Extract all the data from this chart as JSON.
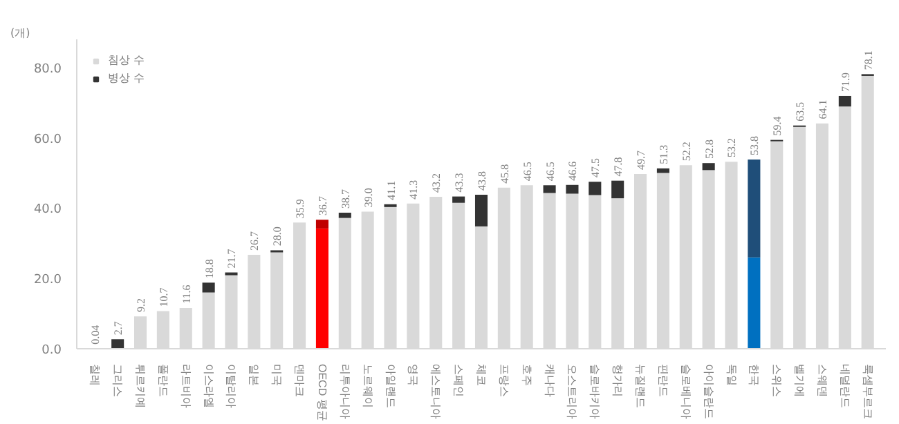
{
  "chart_data": {
    "type": "bar",
    "stacked": true,
    "ylabel": "(개)",
    "categories": [
      "칠레",
      "그리스",
      "튀르키예",
      "폴란드",
      "라트비아",
      "이스라엘",
      "이탈리아",
      "일본",
      "미국",
      "덴마크",
      "OECD 평균",
      "리투아니아",
      "노르웨이",
      "아일랜드",
      "영국",
      "에스토니아",
      "스페인",
      "체코",
      "프랑스",
      "호주",
      "캐나다",
      "오스트리아",
      "슬로바키아",
      "헝가리",
      "뉴질랜드",
      "핀란드",
      "슬로베니아",
      "아이슬란드",
      "독일",
      "한국",
      "스위스",
      "벨기에",
      "스웨덴",
      "네덜란드",
      "룩셈부르크"
    ],
    "series": [
      {
        "name": "침상 수",
        "color": "#d9d9d9",
        "colors": [
          "#d9d9d9",
          "#d9d9d9",
          "#d9d9d9",
          "#d9d9d9",
          "#d9d9d9",
          "#d9d9d9",
          "#d9d9d9",
          "#d9d9d9",
          "#d9d9d9",
          "#d9d9d9",
          "#ff0000",
          "#d9d9d9",
          "#d9d9d9",
          "#d9d9d9",
          "#d9d9d9",
          "#d9d9d9",
          "#d9d9d9",
          "#d9d9d9",
          "#d9d9d9",
          "#d9d9d9",
          "#d9d9d9",
          "#d9d9d9",
          "#d9d9d9",
          "#d9d9d9",
          "#d9d9d9",
          "#d9d9d9",
          "#d9d9d9",
          "#d9d9d9",
          "#d9d9d9",
          "#0070c0",
          "#d9d9d9",
          "#d9d9d9",
          "#d9d9d9",
          "#d9d9d9",
          "#d9d9d9"
        ],
        "values": [
          0.04,
          0,
          9.2,
          10.7,
          11.6,
          16.0,
          20.9,
          26.7,
          27.4,
          35.9,
          34.2,
          37.2,
          39.0,
          40.3,
          41.3,
          43.2,
          41.5,
          34.8,
          45.8,
          46.5,
          44.3,
          44.1,
          43.7,
          42.8,
          49.7,
          50.0,
          52.2,
          50.8,
          53.2,
          26.0,
          59.0,
          63.1,
          64.1,
          68.9,
          77.6
        ]
      },
      {
        "name": "병상 수",
        "color": "#333333",
        "colors": [
          "#333333",
          "#333333",
          "#333333",
          "#333333",
          "#333333",
          "#333333",
          "#333333",
          "#333333",
          "#333333",
          "#333333",
          "#c00000",
          "#333333",
          "#333333",
          "#333333",
          "#333333",
          "#333333",
          "#333333",
          "#333333",
          "#333333",
          "#333333",
          "#333333",
          "#333333",
          "#333333",
          "#333333",
          "#333333",
          "#333333",
          "#333333",
          "#333333",
          "#333333",
          "#1f4e79",
          "#333333",
          "#333333",
          "#333333",
          "#333333",
          "#333333"
        ],
        "values": [
          0,
          2.7,
          0,
          0,
          0,
          2.8,
          0.8,
          0,
          0.6,
          0,
          2.5,
          1.5,
          0,
          0.8,
          0,
          0,
          1.8,
          9.0,
          0,
          0,
          2.2,
          2.5,
          3.8,
          5.0,
          0,
          1.3,
          0,
          2.0,
          0,
          27.8,
          0.4,
          0.4,
          0,
          3.0,
          0.5
        ]
      }
    ],
    "totals": [
      "0.04",
      "2.7",
      "9.2",
      "10.7",
      "11.6",
      "18.8",
      "21.7",
      "26.7",
      "28.0",
      "35.9",
      "36.7",
      "38.7",
      "39.0",
      "41.1",
      "41.3",
      "43.2",
      "43.3",
      "43.8",
      "45.8",
      "46.5",
      "46.5",
      "46.6",
      "47.5",
      "47.8",
      "49.7",
      "51.3",
      "52.2",
      "52.8",
      "53.2",
      "53.8",
      "59.4",
      "63.5",
      "64.1",
      "71.9",
      "78.1"
    ],
    "ylim": [
      0,
      88
    ],
    "yticks": [
      {
        "value": 0,
        "label": "0.0"
      },
      {
        "value": 20,
        "label": "20.0"
      },
      {
        "value": 40,
        "label": "40.0"
      },
      {
        "value": 60,
        "label": "60.0"
      },
      {
        "value": 80,
        "label": "80.0"
      }
    ],
    "grid": false,
    "legend": "top left"
  }
}
